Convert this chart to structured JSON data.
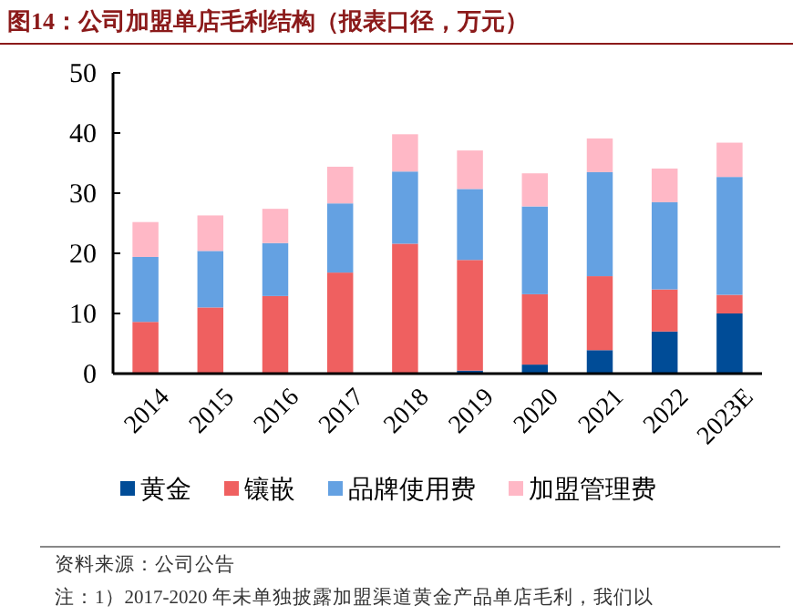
{
  "chart_data": {
    "type": "bar",
    "stacked": true,
    "title": "图14：公司加盟单店毛利结构（报表口径，万元）",
    "categories": [
      "2014",
      "2015",
      "2016",
      "2017",
      "2018",
      "2019",
      "2020",
      "2021",
      "2022",
      "2023E"
    ],
    "series": [
      {
        "name": "黄金",
        "color": "#004c97",
        "values": [
          0,
          0,
          0,
          0,
          0,
          0.5,
          1.5,
          3.9,
          7.0,
          10.0
        ]
      },
      {
        "name": "镶嵌",
        "color": "#ef6060",
        "values": [
          8.6,
          11.0,
          12.9,
          16.8,
          21.6,
          18.4,
          11.7,
          12.3,
          7.0,
          3.1
        ]
      },
      {
        "name": "品牌使用费",
        "color": "#64a1e2",
        "values": [
          10.8,
          9.4,
          8.8,
          11.5,
          12.0,
          11.8,
          14.6,
          17.3,
          14.5,
          19.6
        ]
      },
      {
        "name": "加盟管理费",
        "color": "#ffb8c6",
        "values": [
          5.8,
          5.9,
          5.7,
          6.1,
          6.2,
          6.4,
          5.5,
          5.6,
          5.6,
          5.7
        ]
      }
    ],
    "ylim": [
      0,
      50
    ],
    "yticks": [
      0,
      10,
      20,
      30,
      40,
      50
    ],
    "grid": false,
    "legend": "bottom",
    "annotations": [
      "资料来源：公司公告",
      "注：1）2017-2020 年未单独披露加盟渠道黄金产品单店毛利，我们以"
    ]
  }
}
